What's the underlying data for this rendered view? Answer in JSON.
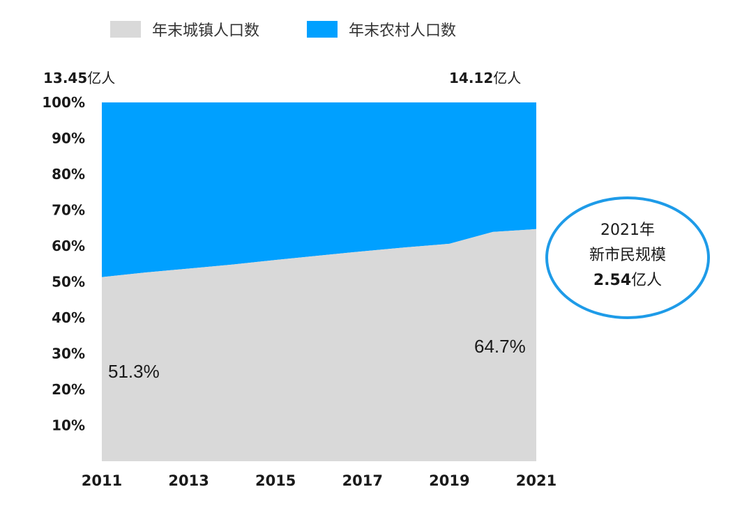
{
  "legend": {
    "urban_label": "年末城镇人口数",
    "rural_label": "年末农村人口数"
  },
  "totals": {
    "start_value": "13.45",
    "start_unit": "亿人",
    "end_value": "14.12",
    "end_unit": "亿人"
  },
  "colors": {
    "urban": "#d9d9d9",
    "rural": "#00a0ff",
    "callout_border": "#1e9be8"
  },
  "callout": {
    "year": "2021",
    "year_unit": "年",
    "line2": "新市民规模",
    "value": "2.54",
    "value_unit": "亿人"
  },
  "annotations": {
    "start_pct": "51.3%",
    "end_pct": "64.7%"
  },
  "chart_data": {
    "type": "area",
    "stacked": "percent",
    "x": [
      2011,
      2012,
      2013,
      2014,
      2015,
      2016,
      2017,
      2018,
      2019,
      2020,
      2021
    ],
    "x_tick_labels": [
      "2011",
      "2013",
      "2015",
      "2017",
      "2019",
      "2021"
    ],
    "y_tick_labels": [
      "10%",
      "20%",
      "30%",
      "40%",
      "50%",
      "60%",
      "70%",
      "80%",
      "90%",
      "100%"
    ],
    "ylim": [
      0,
      100
    ],
    "series": [
      {
        "name": "年末城镇人口数",
        "values": [
          51.3,
          52.6,
          53.7,
          54.8,
          56.1,
          57.3,
          58.5,
          59.6,
          60.6,
          63.9,
          64.7
        ]
      },
      {
        "name": "年末农村人口数",
        "values": [
          48.7,
          47.4,
          46.3,
          45.2,
          43.9,
          42.7,
          41.5,
          40.4,
          39.4,
          36.1,
          35.3
        ]
      }
    ],
    "grid": false,
    "legend_position": "top"
  }
}
